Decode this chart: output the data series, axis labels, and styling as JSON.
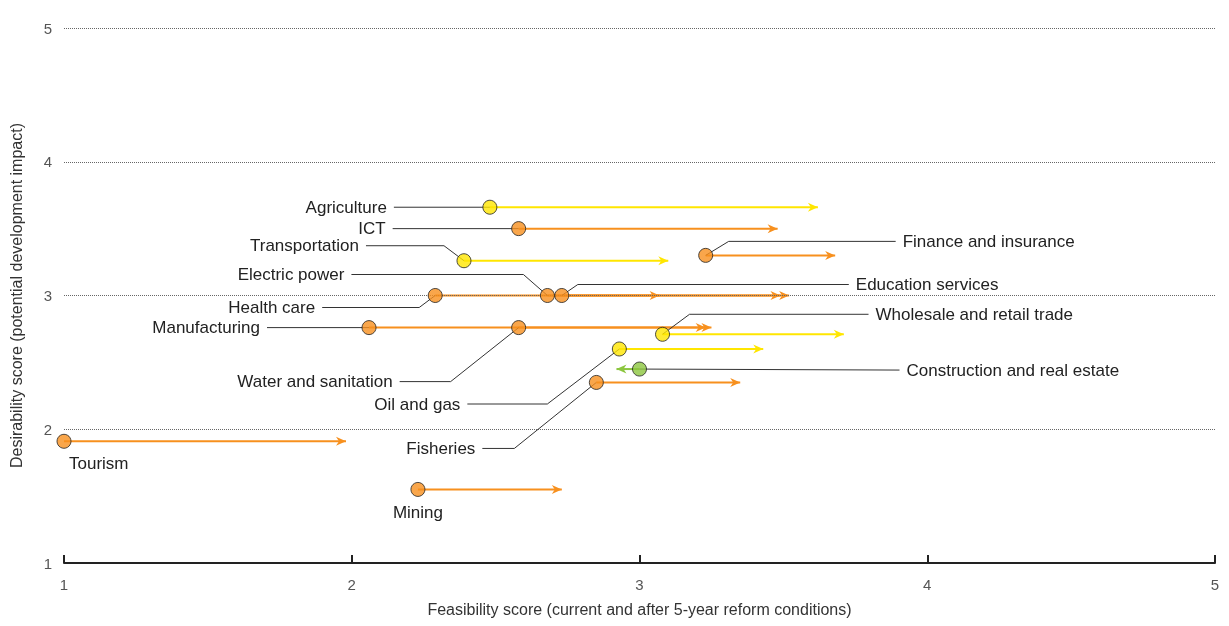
{
  "chart_data": {
    "type": "scatter",
    "xlabel": "Feasibility score (current and after 5-year reform conditions)",
    "ylabel": "Desirability score (potential development impact)",
    "xlim": [
      1,
      5
    ],
    "ylim": [
      1,
      5
    ],
    "xticks": [
      1,
      2,
      3,
      4,
      5
    ],
    "yticks": [
      1,
      2,
      3,
      4,
      5
    ],
    "grid": "y",
    "marker": "circle",
    "x": [
      2.48,
      2.58,
      2.39,
      3.23,
      2.68,
      2.73,
      2.29,
      2.06,
      2.58,
      3.08,
      2.93,
      3.0,
      2.85,
      1.0,
      2.23
    ],
    "values": [
      3.66,
      3.5,
      3.26,
      3.3,
      3.0,
      3.0,
      3.0,
      2.76,
      2.76,
      2.71,
      2.6,
      2.45,
      2.35,
      1.91,
      1.55
    ],
    "colors": [
      "#ffe600",
      "#f7901e",
      "#ffe600",
      "#f7901e",
      "#f7901e",
      "#f7901e",
      "#f7901e",
      "#f7901e",
      "#f7901e",
      "#ffe600",
      "#ffe600",
      "#8cc63f",
      "#f7901e",
      "#f7901e",
      "#f7901e"
    ],
    "xerrors": [
      [
        2.48,
        3.62
      ],
      [
        2.58,
        3.48
      ],
      [
        2.39,
        3.1
      ],
      [
        3.23,
        3.68
      ],
      [
        2.68,
        3.49
      ],
      [
        2.73,
        3.52
      ],
      [
        2.29,
        3.07
      ],
      [
        2.06,
        3.23
      ],
      [
        2.58,
        3.25
      ],
      [
        3.08,
        3.71
      ],
      [
        2.93,
        3.43
      ],
      [
        2.92,
        3.0
      ],
      [
        2.85,
        3.35
      ],
      [
        1.0,
        1.98
      ],
      [
        2.23,
        2.73
      ]
    ],
    "annotations": [
      {
        "text": "Agriculture",
        "x": 2.48,
        "y": 3.66
      },
      {
        "text": "ICT",
        "x": 2.58,
        "y": 3.5
      },
      {
        "text": "Transportation",
        "x": 2.39,
        "y": 3.26
      },
      {
        "text": "Finance and insurance",
        "x": 3.23,
        "y": 3.3
      },
      {
        "text": "Electric power",
        "x": 2.68,
        "y": 3.0
      },
      {
        "text": "Education services",
        "x": 2.73,
        "y": 3.0
      },
      {
        "text": "Health care",
        "x": 2.29,
        "y": 3.0
      },
      {
        "text": "Manufacturing",
        "x": 2.06,
        "y": 2.76
      },
      {
        "text": "Water and sanitation",
        "x": 2.58,
        "y": 2.76
      },
      {
        "text": "Wholesale and retail trade",
        "x": 3.08,
        "y": 2.71
      },
      {
        "text": "Oil and gas",
        "x": 2.93,
        "y": 2.6
      },
      {
        "text": "Construction and real estate",
        "x": 3.0,
        "y": 2.45
      },
      {
        "text": "Fisheries",
        "x": 2.85,
        "y": 2.35
      },
      {
        "text": "Tourism",
        "x": 1.0,
        "y": 1.91
      },
      {
        "text": "Mining",
        "x": 2.23,
        "y": 1.55
      }
    ]
  }
}
